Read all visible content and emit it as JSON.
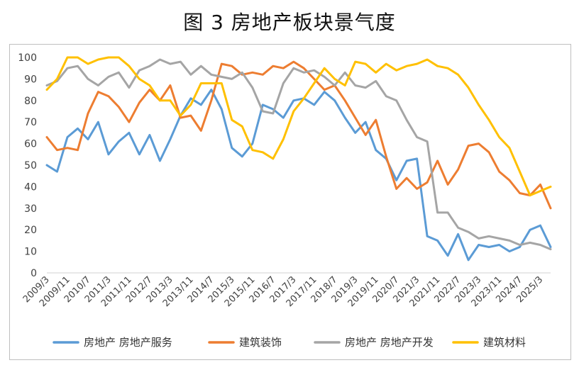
{
  "figure_title": "图 3  房地产板块景气度",
  "chart_data": {
    "type": "line",
    "title": "图 3  房地产板块景气度",
    "xlabel": "",
    "ylabel": "",
    "ylim": [
      0,
      100
    ],
    "yticks": [
      0,
      10,
      20,
      30,
      40,
      50,
      60,
      70,
      80,
      90,
      100
    ],
    "grid": false,
    "legend_position": "bottom",
    "x": [
      "2009/3",
      "2009/7",
      "2009/11",
      "2010/3",
      "2010/7",
      "2010/11",
      "2011/3",
      "2011/7",
      "2011/11",
      "2012/3",
      "2012/7",
      "2012/11",
      "2013/3",
      "2013/7",
      "2013/11",
      "2014/3",
      "2014/7",
      "2014/11",
      "2015/3",
      "2015/7",
      "2015/11",
      "2016/3",
      "2016/7",
      "2016/11",
      "2017/3",
      "2017/7",
      "2017/11",
      "2018/3",
      "2018/7",
      "2018/11",
      "2019/3",
      "2019/7",
      "2019/11",
      "2020/3",
      "2020/7",
      "2020/11",
      "2021/3",
      "2021/7",
      "2021/11",
      "2022/3",
      "2022/7",
      "2022/11",
      "2023/3",
      "2023/7",
      "2023/11",
      "2024/3",
      "2024/7",
      "2024/11",
      "2025/3",
      "2025/7"
    ],
    "x_tick_labels": [
      "2009/3",
      "2009/11",
      "2010/7",
      "2011/3",
      "2011/11",
      "2012/7",
      "2013/3",
      "2013/11",
      "2014/7",
      "2015/3",
      "2015/11",
      "2016/7",
      "2017/3",
      "2017/11",
      "2018/7",
      "2019/3",
      "2019/11",
      "2020/7",
      "2021/3",
      "2021/11",
      "2022/7",
      "2023/3",
      "2023/11",
      "2024/7",
      "2025/3"
    ],
    "series": [
      {
        "name": "房地产 房地产服务",
        "color": "#5B9BD5",
        "values": [
          50,
          47,
          63,
          67,
          62,
          70,
          55,
          61,
          65,
          55,
          64,
          52,
          62,
          73,
          81,
          78,
          85,
          76,
          58,
          54,
          60,
          78,
          76,
          72,
          80,
          81,
          78,
          84,
          80,
          72,
          65,
          70,
          57,
          53,
          43,
          52,
          53,
          17,
          15,
          8,
          18,
          6,
          13,
          12,
          13,
          10,
          12,
          20,
          22,
          12
        ]
      },
      {
        "name": "建筑装饰",
        "color": "#ED7D31",
        "values": [
          63,
          57,
          58,
          57,
          74,
          84,
          82,
          77,
          70,
          79,
          85,
          80,
          87,
          72,
          73,
          66,
          80,
          97,
          96,
          92,
          93,
          92,
          96,
          95,
          98,
          95,
          90,
          85,
          87,
          80,
          72,
          64,
          71,
          54,
          39,
          44,
          39,
          42,
          52,
          41,
          48,
          59,
          60,
          56,
          47,
          43,
          37,
          36,
          41,
          30
        ]
      },
      {
        "name": "房地产 房地产开发",
        "color": "#A5A5A5",
        "values": [
          87,
          89,
          95,
          96,
          90,
          87,
          91,
          93,
          86,
          94,
          96,
          99,
          97,
          98,
          92,
          96,
          92,
          91,
          90,
          93,
          86,
          75,
          74,
          88,
          95,
          93,
          94,
          91,
          87,
          93,
          87,
          86,
          89,
          82,
          80,
          71,
          63,
          61,
          28,
          28,
          21,
          19,
          16,
          17,
          16,
          15,
          13,
          14,
          13,
          11
        ]
      },
      {
        "name": "建筑材料",
        "color": "#FFC000",
        "values": [
          85,
          90,
          100,
          100,
          97,
          99,
          100,
          100,
          96,
          90,
          87,
          80,
          80,
          73,
          78,
          88,
          88,
          88,
          71,
          68,
          57,
          56,
          53,
          62,
          75,
          81,
          88,
          95,
          90,
          87,
          98,
          97,
          93,
          97,
          94,
          96,
          97,
          99,
          96,
          95,
          92,
          86,
          78,
          71,
          63,
          58,
          47,
          36,
          38,
          40
        ]
      }
    ]
  }
}
